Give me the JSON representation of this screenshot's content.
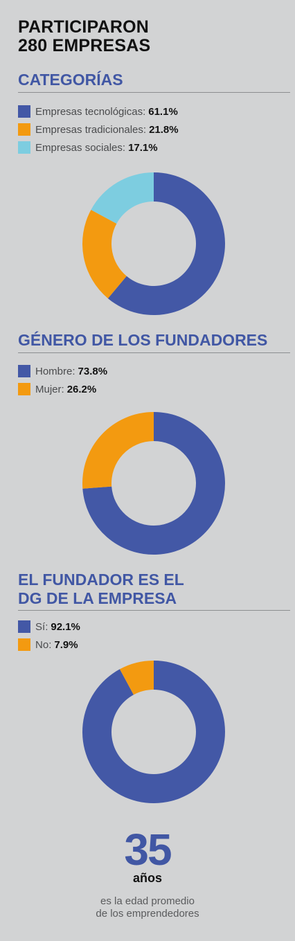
{
  "header": {
    "line1": "PARTICIPARON",
    "line2": "280 EMPRESAS"
  },
  "chart_data": [
    {
      "type": "pie",
      "title": "CATEGORÍAS",
      "series": [
        {
          "name": "Empresas tecnológicas",
          "value": 61.1,
          "label": "61.1%",
          "color": "#4358a6"
        },
        {
          "name": "Empresas tradicionales",
          "value": 21.8,
          "label": "21.8%",
          "color": "#f39a10"
        },
        {
          "name": "Empresas sociales",
          "value": 17.1,
          "label": "17.1%",
          "color": "#7dcde0"
        }
      ]
    },
    {
      "type": "pie",
      "title": "GÉNERO DE LOS FUNDADORES",
      "series": [
        {
          "name": "Hombre",
          "value": 73.8,
          "label": "73.8%",
          "color": "#4358a6"
        },
        {
          "name": "Mujer",
          "value": 26.2,
          "label": "26.2%",
          "color": "#f39a10"
        }
      ]
    },
    {
      "type": "pie",
      "title_line1": "EL FUNDADOR ES EL",
      "title_line2": "DG DE LA EMPRESA",
      "series": [
        {
          "name": "Sí",
          "value": 92.1,
          "label": "92.1%",
          "color": "#4358a6"
        },
        {
          "name": "No",
          "value": 7.9,
          "label": "7.9%",
          "color": "#f39a10"
        }
      ]
    }
  ],
  "stat": {
    "value": "35",
    "unit": "años",
    "caption_line1": "es la edad promedio",
    "caption_line2": "de los emprendedores"
  }
}
